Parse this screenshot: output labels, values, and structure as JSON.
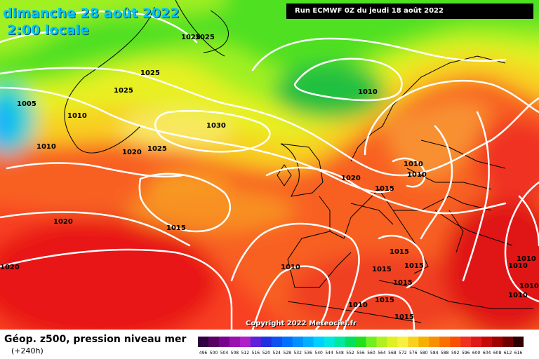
{
  "map": {
    "date_label": "dimanche 28 août 2022",
    "time_label": "2:00 locale",
    "run_label": "Run ECMWF 0Z du jeudi 18 août 2022",
    "copyright": "Copyright 2022 Meteociel.fr",
    "isobar_labels": [
      "1025",
      "1025",
      "1025",
      "1025",
      "1005",
      "1010",
      "1010",
      "1020",
      "1025",
      "1030",
      "1020",
      "1015",
      "1020",
      "1020",
      "1015",
      "1010",
      "1010",
      "1010",
      "1010",
      "1015",
      "1015",
      "1015",
      "1015",
      "1015",
      "1015",
      "1010",
      "1010",
      "1010",
      "1010",
      "1010"
    ]
  },
  "legend": {
    "title": "Géop. z500, pression niveau mer",
    "subtitle": "(+240h)",
    "scale_values": [
      "496",
      "500",
      "504",
      "508",
      "512",
      "516",
      "520",
      "524",
      "528",
      "532",
      "536",
      "540",
      "544",
      "548",
      "552",
      "556",
      "560",
      "564",
      "568",
      "572",
      "576",
      "580",
      "584",
      "588",
      "592",
      "596",
      "600",
      "604",
      "608",
      "612",
      "616"
    ],
    "scale_colors": [
      "#300040",
      "#5a0060",
      "#7a0090",
      "#9a10b0",
      "#b020c8",
      "#6020d8",
      "#2030e0",
      "#1050f0",
      "#0070ff",
      "#0090ff",
      "#00b0ff",
      "#00d0ff",
      "#00e8e0",
      "#00e8a0",
      "#00e060",
      "#20e020",
      "#70f020",
      "#b0f020",
      "#e0f020",
      "#f8f040",
      "#f8d020",
      "#f8b000",
      "#f89000",
      "#f87000",
      "#f85000",
      "#f03020",
      "#e01818",
      "#c80808",
      "#a00000",
      "#700000",
      "#300000"
    ]
  },
  "colors": {
    "coast": "#000000",
    "isobar": "#ffffff"
  }
}
